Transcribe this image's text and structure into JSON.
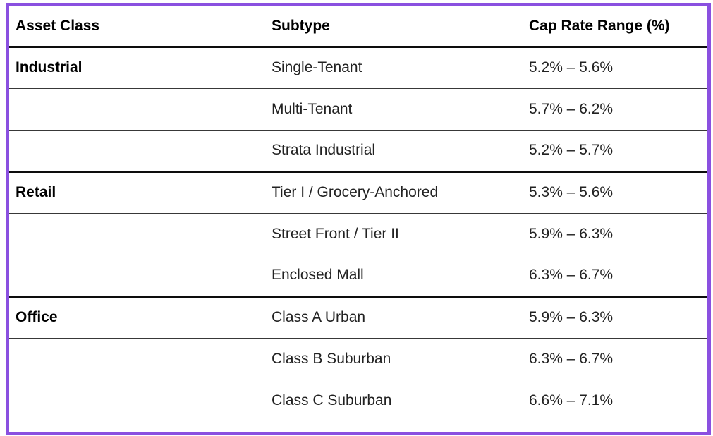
{
  "colors": {
    "frame_border": "#8a50e0",
    "header_rule": "#0d0d0d",
    "group_rule": "#0d0d0d",
    "row_rule": "#383838",
    "background": "#ffffff",
    "header_text": "#000000",
    "body_text": "#222222"
  },
  "chart_data": {
    "type": "table",
    "title": "",
    "columns": [
      "Asset Class",
      "Subtype",
      "Cap Rate Range (%)"
    ],
    "rows": [
      [
        "Industrial",
        "Single-Tenant",
        "5.2% – 5.6%"
      ],
      [
        "",
        "Multi-Tenant",
        "5.7% – 6.2%"
      ],
      [
        "",
        "Strata Industrial",
        "5.2% – 5.7%"
      ],
      [
        "Retail",
        "Tier I / Grocery-Anchored",
        "5.3% – 5.6%"
      ],
      [
        "",
        "Street Front / Tier II",
        "5.9% – 6.3%"
      ],
      [
        "",
        "Enclosed Mall",
        "6.3% – 6.7%"
      ],
      [
        "Office",
        "Class A Urban",
        "5.9% – 6.3%"
      ],
      [
        "",
        "Class B Suburban",
        "6.3% – 6.7%"
      ],
      [
        "",
        "Class C Suburban",
        "6.6% – 7.1%"
      ]
    ],
    "groups": [
      {
        "name": "Industrial",
        "rows": [
          0,
          1,
          2
        ],
        "cap_rate_min_pct": 5.2,
        "cap_rate_max_pct": 6.2
      },
      {
        "name": "Retail",
        "rows": [
          3,
          4,
          5
        ],
        "cap_rate_min_pct": 5.3,
        "cap_rate_max_pct": 6.7
      },
      {
        "name": "Office",
        "rows": [
          6,
          7,
          8
        ],
        "cap_rate_min_pct": 5.9,
        "cap_rate_max_pct": 7.1
      }
    ],
    "group_start_rows": [
      3,
      6
    ],
    "layout": {
      "grid": "horizontal-rules-only",
      "legend": "none"
    }
  }
}
